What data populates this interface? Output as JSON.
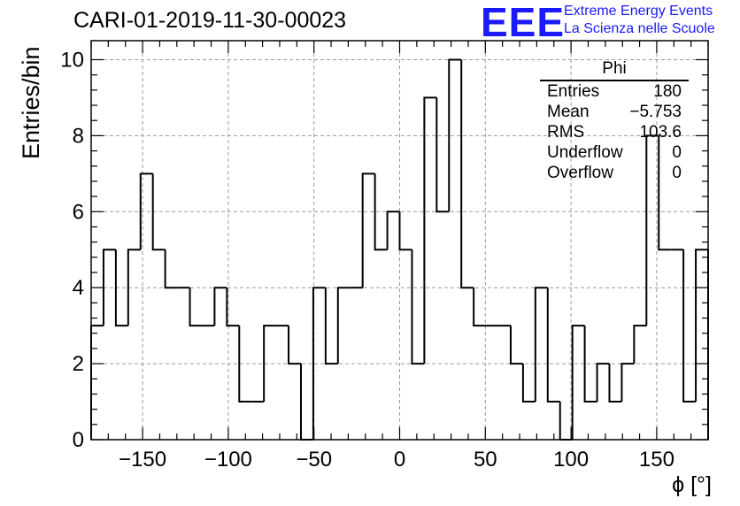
{
  "chart_data": {
    "type": "bar",
    "title": "CARI-01-2019-11-30-00023",
    "xlabel": "ϕ [°]",
    "ylabel": "Entries/bin",
    "xlim": [
      -180,
      180
    ],
    "ylim": [
      0,
      10.5
    ],
    "bin_width": 7.2,
    "x_ticks": [
      -150,
      -100,
      -50,
      0,
      50,
      100,
      150
    ],
    "x_tick_labels": [
      "−150",
      "−100",
      "−50",
      "0",
      "50",
      "100",
      "150"
    ],
    "y_ticks": [
      0,
      2,
      4,
      6,
      8,
      10
    ],
    "y_tick_labels": [
      "0",
      "2",
      "4",
      "6",
      "8",
      "10"
    ],
    "grid": true,
    "values": [
      3,
      5,
      3,
      5,
      7,
      5,
      4,
      4,
      3,
      3,
      4,
      3,
      1,
      1,
      3,
      3,
      2,
      0,
      4,
      2,
      4,
      4,
      7,
      5,
      6,
      5,
      2,
      9,
      6,
      10,
      4,
      3,
      3,
      3,
      2,
      1,
      4,
      1,
      0,
      3,
      1,
      2,
      1,
      2,
      3,
      8,
      5,
      5,
      1,
      5
    ],
    "stats_box": {
      "title": "Phi",
      "rows": [
        {
          "label": "Entries",
          "value": "180"
        },
        {
          "label": "Mean",
          "value": "−5.753"
        },
        {
          "label": "RMS",
          "value": "103.6"
        },
        {
          "label": "Underflow",
          "value": "0"
        },
        {
          "label": "Overflow",
          "value": "0"
        }
      ]
    }
  },
  "logo": {
    "mark": "EEE",
    "line1": "Extreme Energy Events",
    "line2": "La Scienza nelle Scuole"
  }
}
